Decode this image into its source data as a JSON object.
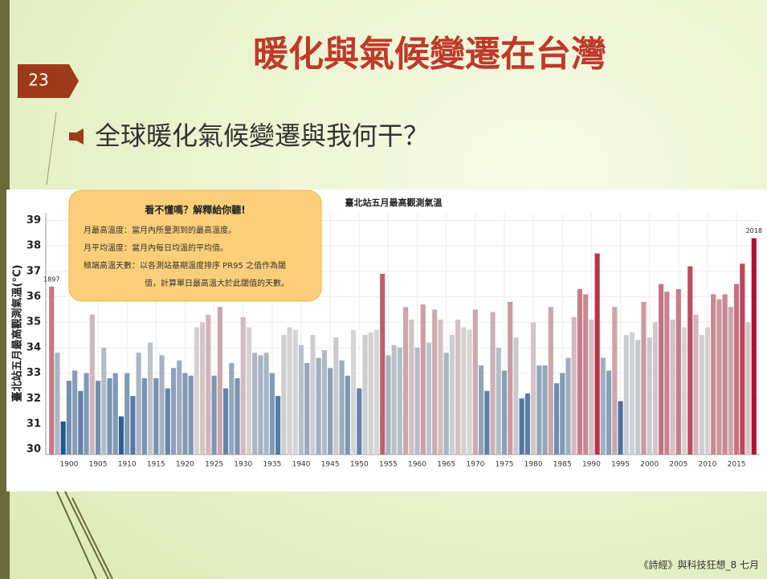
{
  "slide": {
    "number": "23",
    "title": "暖化與氣候變遷在台灣",
    "bullet": "全球暖化氣候變遷與我何干？",
    "footer": "《詩經》與科技狂想_8 七月"
  },
  "note": {
    "heading": "看不懂嗎？解釋給你聽!",
    "lines": [
      "月最高溫度：當月內所量測到的最高溫度。",
      "月平均溫度：當月內每日均溫的平均值。",
      "極端高溫天數：以各測站基期溫度排序 PR95 之值作為閾",
      "值，計算單日最高溫大於此閾值的天數。"
    ]
  },
  "chart_data": {
    "type": "bar",
    "title": "臺北站五月最高觀測氣溫",
    "y_label": "臺北站五月最高觀測氣溫(°C)",
    "x": [
      1897,
      1898,
      1899,
      1900,
      1901,
      1902,
      1903,
      1904,
      1905,
      1906,
      1907,
      1908,
      1909,
      1910,
      1911,
      1912,
      1913,
      1914,
      1915,
      1916,
      1917,
      1918,
      1919,
      1920,
      1921,
      1922,
      1923,
      1924,
      1925,
      1926,
      1927,
      1928,
      1929,
      1930,
      1931,
      1932,
      1933,
      1934,
      1935,
      1936,
      1937,
      1938,
      1939,
      1940,
      1941,
      1942,
      1943,
      1944,
      1945,
      1946,
      1947,
      1948,
      1949,
      1950,
      1951,
      1952,
      1953,
      1954,
      1955,
      1956,
      1957,
      1958,
      1959,
      1960,
      1961,
      1962,
      1963,
      1964,
      1965,
      1966,
      1967,
      1968,
      1969,
      1970,
      1971,
      1972,
      1973,
      1974,
      1975,
      1976,
      1977,
      1978,
      1979,
      1980,
      1981,
      1982,
      1983,
      1984,
      1985,
      1986,
      1987,
      1988,
      1989,
      1990,
      1991,
      1992,
      1993,
      1994,
      1995,
      1996,
      1997,
      1998,
      1999,
      2000,
      2001,
      2002,
      2003,
      2004,
      2005,
      2006,
      2007,
      2008,
      2009,
      2010,
      2011,
      2012,
      2013,
      2014,
      2015,
      2016,
      2017,
      2018
    ],
    "values": [
      36.4,
      33.8,
      31.1,
      32.7,
      33.1,
      32.3,
      33.0,
      35.3,
      32.7,
      34.0,
      32.8,
      33.0,
      31.3,
      33.0,
      32.1,
      33.8,
      32.8,
      34.2,
      32.8,
      33.7,
      32.4,
      33.2,
      33.5,
      33.0,
      32.9,
      34.8,
      35.0,
      35.3,
      32.9,
      35.6,
      32.4,
      33.4,
      32.8,
      35.2,
      34.8,
      33.8,
      33.7,
      33.8,
      33.0,
      32.1,
      34.5,
      34.8,
      34.7,
      34.1,
      33.4,
      34.5,
      33.6,
      33.9,
      33.2,
      34.4,
      33.5,
      32.9,
      34.7,
      32.4,
      34.5,
      34.6,
      34.7,
      36.9,
      33.7,
      34.1,
      34.0,
      35.6,
      35.1,
      34.0,
      35.7,
      34.2,
      35.5,
      35.1,
      33.8,
      34.5,
      35.1,
      34.8,
      34.7,
      35.5,
      33.3,
      32.3,
      35.4,
      34.0,
      33.1,
      35.8,
      34.4,
      32.0,
      32.2,
      35.0,
      33.3,
      33.3,
      35.6,
      32.6,
      33.0,
      33.6,
      35.2,
      36.3,
      36.1,
      35.1,
      37.7,
      33.6,
      33.1,
      35.6,
      31.9,
      34.5,
      34.6,
      34.3,
      35.8,
      34.4,
      35.0,
      36.5,
      36.2,
      35.1,
      36.3,
      34.8,
      37.2,
      35.3,
      34.5,
      34.8,
      36.1,
      35.9,
      36.1,
      35.6,
      36.5,
      37.3,
      35.0,
      38.3
    ],
    "xlim": [
      1896,
      2019
    ],
    "xticks": [
      1900,
      1905,
      1910,
      1915,
      1920,
      1925,
      1930,
      1935,
      1940,
      1945,
      1950,
      1955,
      1960,
      1965,
      1970,
      1975,
      1980,
      1985,
      1990,
      1995,
      2000,
      2005,
      2010,
      2015
    ],
    "ylim": [
      29.8,
      39.3
    ],
    "yticks": [
      30,
      31,
      32,
      33,
      34,
      35,
      36,
      37,
      38,
      39
    ],
    "grid": true,
    "color_scale": [
      "#24578f",
      "#d6d6d6",
      "#b2112b"
    ],
    "annotations": [
      {
        "x": 1897,
        "text": "1897"
      },
      {
        "x": 2018,
        "text": "2018"
      }
    ]
  }
}
